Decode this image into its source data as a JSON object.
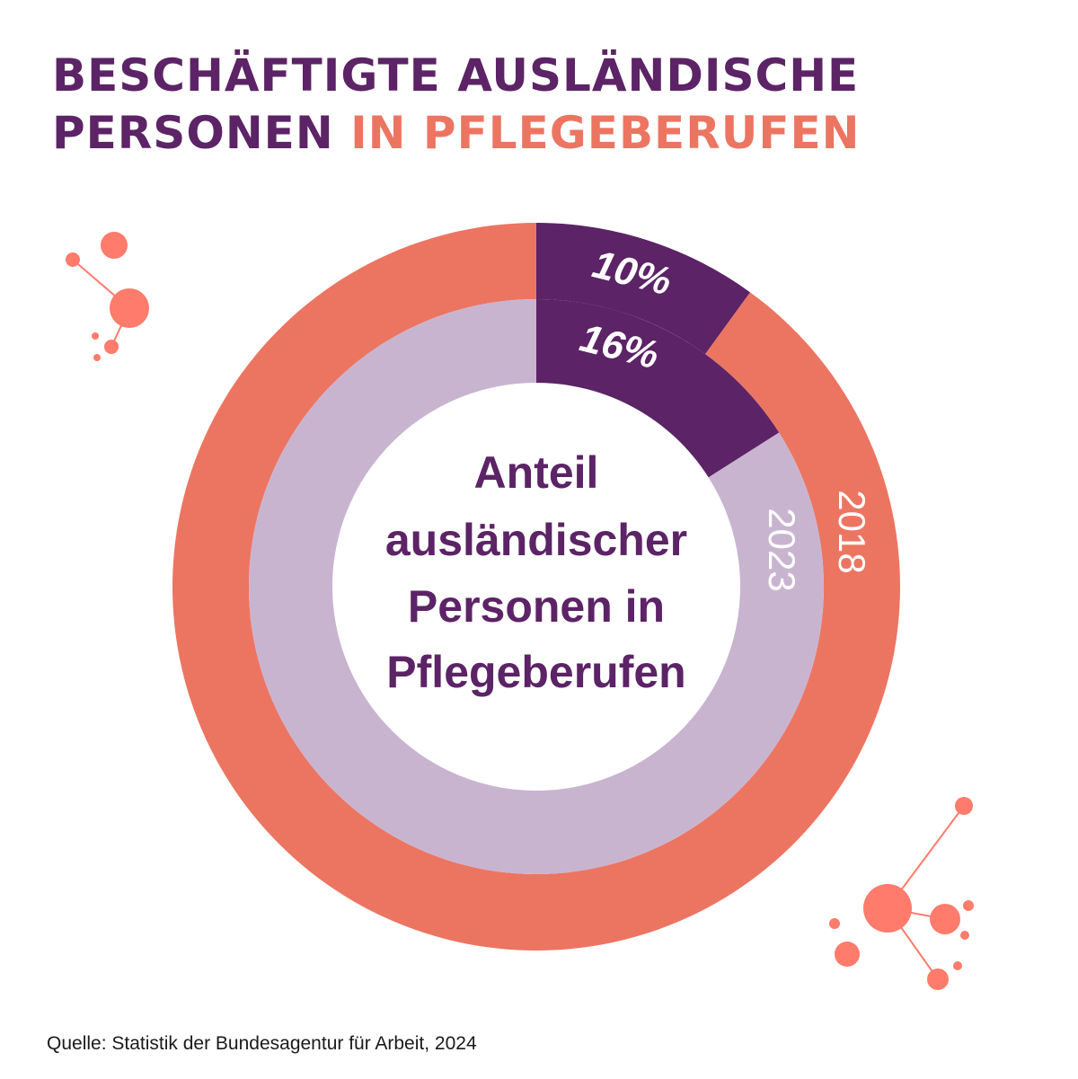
{
  "title": {
    "line1": "BESCHÄFTIGTE AUSLÄNDISCHE",
    "line2_part1": "PERSONEN ",
    "line2_part2": "IN PFLEGEBERUFEN"
  },
  "center_label": [
    "Anteil",
    "ausländischer",
    "Personen in",
    "Pflegeberufen"
  ],
  "source": "Quelle: Statistik der Bundesagentur für Arbeit, 2024",
  "colors": {
    "primary": "#5C2366",
    "accent": "#EC7562",
    "lavender": "#C9B4D0",
    "dots": "#FF7B6B"
  },
  "chart_data": {
    "type": "pie",
    "variant": "nested-donut",
    "series": [
      {
        "name": "2018",
        "ring": "outer",
        "value": 10,
        "label": "10%",
        "highlight_color": "#5C2366",
        "rest_color": "#EC7562"
      },
      {
        "name": "2023",
        "ring": "inner",
        "value": 16,
        "label": "16%",
        "highlight_color": "#5C2366",
        "rest_color": "#C9B4D0"
      }
    ],
    "unit": "%"
  }
}
